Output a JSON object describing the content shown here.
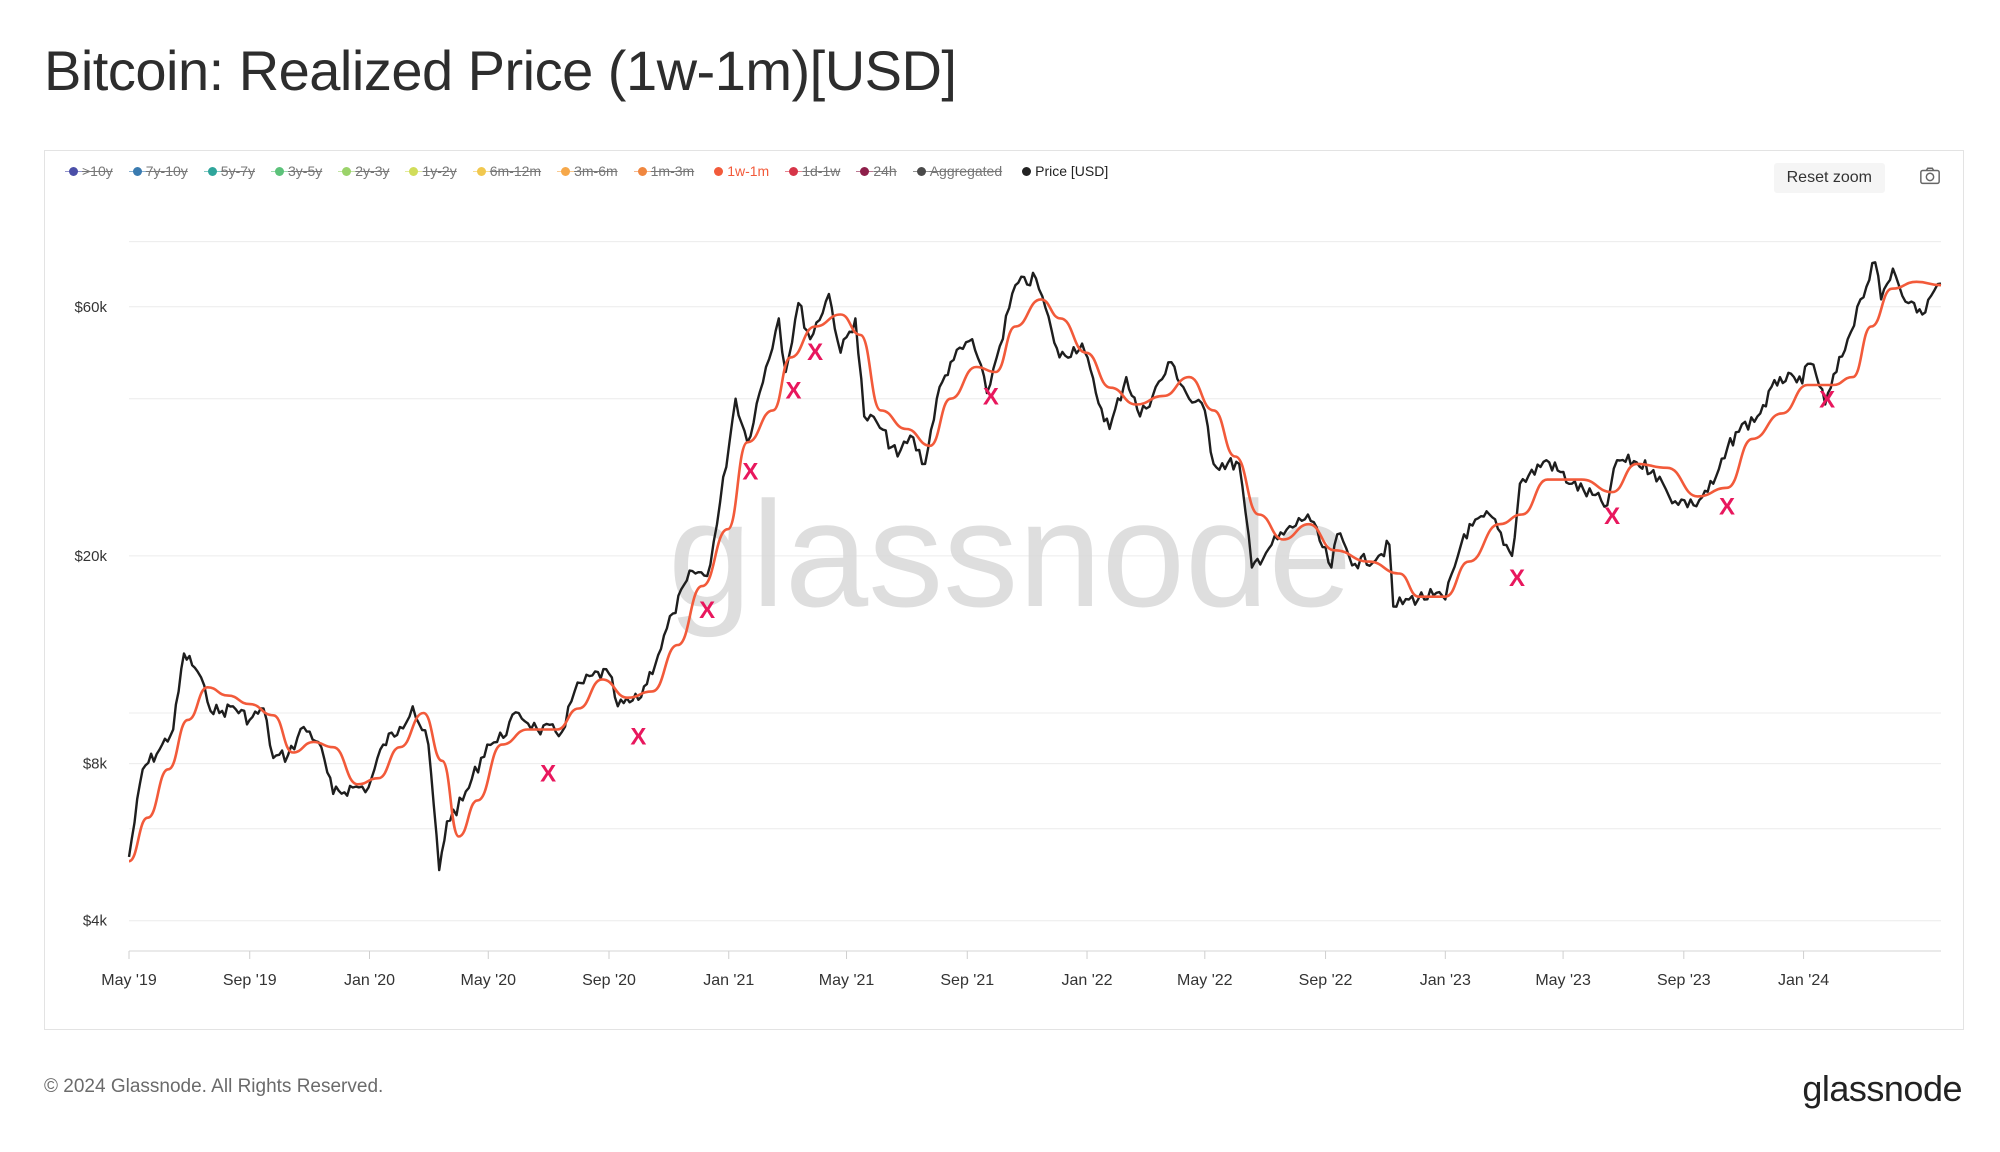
{
  "title": "Bitcoin: Realized Price (1w-1m)[USD]",
  "legend": [
    {
      "label": ">10y",
      "color": "#4b4fa8",
      "active": false
    },
    {
      "label": "7y-10y",
      "color": "#3a7bb0",
      "active": false
    },
    {
      "label": "5y-7y",
      "color": "#2fa59b",
      "active": false
    },
    {
      "label": "3y-5y",
      "color": "#5cc27a",
      "active": false
    },
    {
      "label": "2y-3y",
      "color": "#9bd36a",
      "active": false
    },
    {
      "label": "1y-2y",
      "color": "#d1dd5a",
      "active": false
    },
    {
      "label": "6m-12m",
      "color": "#f1c84f",
      "active": false
    },
    {
      "label": "3m-6m",
      "color": "#f6a84a",
      "active": false
    },
    {
      "label": "1m-3m",
      "color": "#f0873f",
      "active": false
    },
    {
      "label": "1w-1m",
      "color": "#f25a3a",
      "active": true
    },
    {
      "label": "1d-1w",
      "color": "#d63548",
      "active": false
    },
    {
      "label": "24h",
      "color": "#8e1f4a",
      "active": false
    },
    {
      "label": "Aggregated",
      "color": "#4a4a4a",
      "active": false
    },
    {
      "label": "Price [USD]",
      "color": "#222222",
      "active": true
    }
  ],
  "controls": {
    "reset_zoom": "Reset zoom",
    "camera": "camera-icon"
  },
  "watermark": "glassnode",
  "footer": {
    "copyright": "© 2024 Glassnode. All Rights Reserved.",
    "brand": "glassnode"
  },
  "colors": {
    "price": "#1e1e1e",
    "realized": "#f25a3a",
    "marker": "#e8175d",
    "grid": "#ececec"
  },
  "chart_data": {
    "type": "line",
    "title": "Bitcoin: Realized Price (1w-1m)[USD]",
    "y_scale": "log",
    "ylim": [
      3500,
      100000
    ],
    "y_ticks": [
      {
        "value": 4000,
        "label": "$4k"
      },
      {
        "value": 8000,
        "label": "$8k"
      },
      {
        "value": 20000,
        "label": "$20k"
      },
      {
        "value": 60000,
        "label": "$60k"
      }
    ],
    "y_gridlines": [
      4000,
      6000,
      8000,
      10000,
      20000,
      40000,
      60000,
      80000
    ],
    "xlim": [
      "2019-05-01",
      "2024-05-20"
    ],
    "x_ticks": [
      {
        "date": "2019-05-01",
        "label": "May '19"
      },
      {
        "date": "2019-09-01",
        "label": "Sep '19"
      },
      {
        "date": "2020-01-01",
        "label": "Jan '20"
      },
      {
        "date": "2020-05-01",
        "label": "May '20"
      },
      {
        "date": "2020-09-01",
        "label": "Sep '20"
      },
      {
        "date": "2021-01-01",
        "label": "Jan '21"
      },
      {
        "date": "2021-05-01",
        "label": "May '21"
      },
      {
        "date": "2021-09-01",
        "label": "Sep '21"
      },
      {
        "date": "2022-01-01",
        "label": "Jan '22"
      },
      {
        "date": "2022-05-01",
        "label": "May '22"
      },
      {
        "date": "2022-09-01",
        "label": "Sep '22"
      },
      {
        "date": "2023-01-01",
        "label": "Jan '23"
      },
      {
        "date": "2023-05-01",
        "label": "May '23"
      },
      {
        "date": "2023-09-01",
        "label": "Sep '23"
      },
      {
        "date": "2024-01-01",
        "label": "Jan '24"
      }
    ],
    "series": [
      {
        "name": "Price [USD]",
        "color": "#1e1e1e",
        "points": [
          [
            "2019-05-01",
            5300
          ],
          [
            "2019-05-15",
            7800
          ],
          [
            "2019-06-01",
            8500
          ],
          [
            "2019-06-15",
            9300
          ],
          [
            "2019-06-26",
            13000
          ],
          [
            "2019-07-10",
            12000
          ],
          [
            "2019-07-20",
            10500
          ],
          [
            "2019-08-01",
            10000
          ],
          [
            "2019-08-15",
            10300
          ],
          [
            "2019-09-01",
            9700
          ],
          [
            "2019-09-15",
            10200
          ],
          [
            "2019-09-25",
            8200
          ],
          [
            "2019-10-10",
            8300
          ],
          [
            "2019-10-26",
            9400
          ],
          [
            "2019-11-10",
            8800
          ],
          [
            "2019-11-25",
            7000
          ],
          [
            "2019-12-15",
            7200
          ],
          [
            "2019-12-31",
            7200
          ],
          [
            "2020-01-15",
            8700
          ],
          [
            "2020-02-01",
            9400
          ],
          [
            "2020-02-14",
            10300
          ],
          [
            "2020-03-01",
            8700
          ],
          [
            "2020-03-12",
            5000
          ],
          [
            "2020-03-20",
            6200
          ],
          [
            "2020-04-05",
            6800
          ],
          [
            "2020-04-30",
            8700
          ],
          [
            "2020-05-10",
            8800
          ],
          [
            "2020-06-01",
            10000
          ],
          [
            "2020-06-20",
            9300
          ],
          [
            "2020-07-15",
            9200
          ],
          [
            "2020-07-28",
            11000
          ],
          [
            "2020-08-15",
            11800
          ],
          [
            "2020-09-01",
            11900
          ],
          [
            "2020-09-10",
            10300
          ],
          [
            "2020-10-01",
            10600
          ],
          [
            "2020-10-21",
            12900
          ],
          [
            "2020-11-05",
            15500
          ],
          [
            "2020-11-25",
            18700
          ],
          [
            "2020-12-10",
            18300
          ],
          [
            "2020-12-20",
            23000
          ],
          [
            "2021-01-08",
            40000
          ],
          [
            "2021-01-20",
            33000
          ],
          [
            "2021-02-08",
            46000
          ],
          [
            "2021-02-21",
            57000
          ],
          [
            "2021-02-28",
            45000
          ],
          [
            "2021-03-13",
            61000
          ],
          [
            "2021-03-25",
            52000
          ],
          [
            "2021-04-13",
            63500
          ],
          [
            "2021-04-25",
            49000
          ],
          [
            "2021-05-10",
            57000
          ],
          [
            "2021-05-19",
            37000
          ],
          [
            "2021-06-01",
            36000
          ],
          [
            "2021-06-22",
            31000
          ],
          [
            "2021-07-05",
            34000
          ],
          [
            "2021-07-20",
            30000
          ],
          [
            "2021-08-01",
            40000
          ],
          [
            "2021-08-15",
            47000
          ],
          [
            "2021-09-06",
            52000
          ],
          [
            "2021-09-21",
            41000
          ],
          [
            "2021-10-01",
            48000
          ],
          [
            "2021-10-20",
            66000
          ],
          [
            "2021-11-10",
            68000
          ],
          [
            "2021-11-26",
            54000
          ],
          [
            "2021-12-04",
            48000
          ],
          [
            "2021-12-27",
            51000
          ],
          [
            "2022-01-10",
            41000
          ],
          [
            "2022-01-24",
            35000
          ],
          [
            "2022-02-10",
            44000
          ],
          [
            "2022-02-24",
            37000
          ],
          [
            "2022-03-28",
            47000
          ],
          [
            "2022-04-15",
            40000
          ],
          [
            "2022-05-01",
            38000
          ],
          [
            "2022-05-10",
            30000
          ],
          [
            "2022-06-05",
            30000
          ],
          [
            "2022-06-18",
            19000
          ],
          [
            "2022-07-08",
            21000
          ],
          [
            "2022-08-14",
            24000
          ],
          [
            "2022-09-07",
            19000
          ],
          [
            "2022-09-13",
            22000
          ],
          [
            "2022-10-01",
            19300
          ],
          [
            "2022-10-25",
            20000
          ],
          [
            "2022-11-05",
            21000
          ],
          [
            "2022-11-09",
            16000
          ],
          [
            "2022-11-25",
            16500
          ],
          [
            "2022-12-20",
            16800
          ],
          [
            "2023-01-01",
            16500
          ],
          [
            "2023-01-20",
            22000
          ],
          [
            "2023-02-15",
            24000
          ],
          [
            "2023-03-10",
            20000
          ],
          [
            "2023-03-18",
            27500
          ],
          [
            "2023-04-14",
            30500
          ],
          [
            "2023-05-10",
            27500
          ],
          [
            "2023-06-15",
            25000
          ],
          [
            "2023-06-25",
            30500
          ],
          [
            "2023-07-15",
            30200
          ],
          [
            "2023-08-01",
            29200
          ],
          [
            "2023-08-17",
            26000
          ],
          [
            "2023-09-11",
            25000
          ],
          [
            "2023-10-01",
            27500
          ],
          [
            "2023-10-24",
            34500
          ],
          [
            "2023-11-15",
            37000
          ],
          [
            "2023-12-08",
            44000
          ],
          [
            "2023-12-25",
            43000
          ],
          [
            "2024-01-11",
            46500
          ],
          [
            "2024-01-23",
            39000
          ],
          [
            "2024-02-15",
            52000
          ],
          [
            "2024-02-28",
            62000
          ],
          [
            "2024-03-14",
            73000
          ],
          [
            "2024-03-20",
            62000
          ],
          [
            "2024-04-01",
            71000
          ],
          [
            "2024-04-17",
            61000
          ],
          [
            "2024-05-01",
            58000
          ],
          [
            "2024-05-10",
            63000
          ],
          [
            "2024-05-20",
            66500
          ]
        ]
      },
      {
        "name": "1w-1m",
        "color": "#f25a3a",
        "points": [
          [
            "2019-05-01",
            5200
          ],
          [
            "2019-05-20",
            6300
          ],
          [
            "2019-06-10",
            7800
          ],
          [
            "2019-06-30",
            9700
          ],
          [
            "2019-07-20",
            11200
          ],
          [
            "2019-08-10",
            10800
          ],
          [
            "2019-09-01",
            10400
          ],
          [
            "2019-09-25",
            9900
          ],
          [
            "2019-10-15",
            8400
          ],
          [
            "2019-11-05",
            8800
          ],
          [
            "2019-11-25",
            8600
          ],
          [
            "2019-12-20",
            7300
          ],
          [
            "2020-01-10",
            7500
          ],
          [
            "2020-02-01",
            8600
          ],
          [
            "2020-02-25",
            10000
          ],
          [
            "2020-03-15",
            8100
          ],
          [
            "2020-04-01",
            5800
          ],
          [
            "2020-04-20",
            6800
          ],
          [
            "2020-05-15",
            8700
          ],
          [
            "2020-06-10",
            9300
          ],
          [
            "2020-07-10",
            9300
          ],
          [
            "2020-08-01",
            10200
          ],
          [
            "2020-08-25",
            11600
          ],
          [
            "2020-09-20",
            10700
          ],
          [
            "2020-10-15",
            11000
          ],
          [
            "2020-11-10",
            13500
          ],
          [
            "2020-12-05",
            17500
          ],
          [
            "2020-12-31",
            22500
          ],
          [
            "2021-01-20",
            33000
          ],
          [
            "2021-02-15",
            38000
          ],
          [
            "2021-03-05",
            48000
          ],
          [
            "2021-03-30",
            55000
          ],
          [
            "2021-04-25",
            58000
          ],
          [
            "2021-05-15",
            53000
          ],
          [
            "2021-06-05",
            38000
          ],
          [
            "2021-07-01",
            35000
          ],
          [
            "2021-07-25",
            32500
          ],
          [
            "2021-08-15",
            40000
          ],
          [
            "2021-09-10",
            46000
          ],
          [
            "2021-09-30",
            45000
          ],
          [
            "2021-10-20",
            55000
          ],
          [
            "2021-11-15",
            62000
          ],
          [
            "2021-12-05",
            57000
          ],
          [
            "2021-12-31",
            49000
          ],
          [
            "2022-01-25",
            42000
          ],
          [
            "2022-02-20",
            39000
          ],
          [
            "2022-03-20",
            40500
          ],
          [
            "2022-04-15",
            44000
          ],
          [
            "2022-05-10",
            38000
          ],
          [
            "2022-06-01",
            31000
          ],
          [
            "2022-06-25",
            24000
          ],
          [
            "2022-07-20",
            21500
          ],
          [
            "2022-08-15",
            23000
          ],
          [
            "2022-09-10",
            20500
          ],
          [
            "2022-10-15",
            19500
          ],
          [
            "2022-11-15",
            18500
          ],
          [
            "2022-12-05",
            16700
          ],
          [
            "2023-01-01",
            16700
          ],
          [
            "2023-01-25",
            19500
          ],
          [
            "2023-02-25",
            23000
          ],
          [
            "2023-03-20",
            24000
          ],
          [
            "2023-04-15",
            28000
          ],
          [
            "2023-05-20",
            28000
          ],
          [
            "2023-06-20",
            26500
          ],
          [
            "2023-07-15",
            30000
          ],
          [
            "2023-08-15",
            29500
          ],
          [
            "2023-09-15",
            26000
          ],
          [
            "2023-10-15",
            27000
          ],
          [
            "2023-11-10",
            33500
          ],
          [
            "2023-12-10",
            37500
          ],
          [
            "2024-01-05",
            42500
          ],
          [
            "2024-01-31",
            42500
          ],
          [
            "2024-02-20",
            44000
          ],
          [
            "2024-03-10",
            55000
          ],
          [
            "2024-03-31",
            65000
          ],
          [
            "2024-04-25",
            67000
          ],
          [
            "2024-05-20",
            66000
          ]
        ]
      }
    ],
    "markers": [
      {
        "date": "2020-07-01",
        "value": 7400,
        "label": "X"
      },
      {
        "date": "2020-10-01",
        "value": 8700,
        "label": "X"
      },
      {
        "date": "2020-12-10",
        "value": 15200,
        "label": "X"
      },
      {
        "date": "2021-01-23",
        "value": 28000,
        "label": "X"
      },
      {
        "date": "2021-03-08",
        "value": 40000,
        "label": "X"
      },
      {
        "date": "2021-03-30",
        "value": 47500,
        "label": "X"
      },
      {
        "date": "2021-09-25",
        "value": 39000,
        "label": "X"
      },
      {
        "date": "2023-03-15",
        "value": 17500,
        "label": "X"
      },
      {
        "date": "2023-06-20",
        "value": 23000,
        "label": "X"
      },
      {
        "date": "2023-10-15",
        "value": 24000,
        "label": "X"
      },
      {
        "date": "2024-01-25",
        "value": 38500,
        "label": "X"
      }
    ]
  }
}
